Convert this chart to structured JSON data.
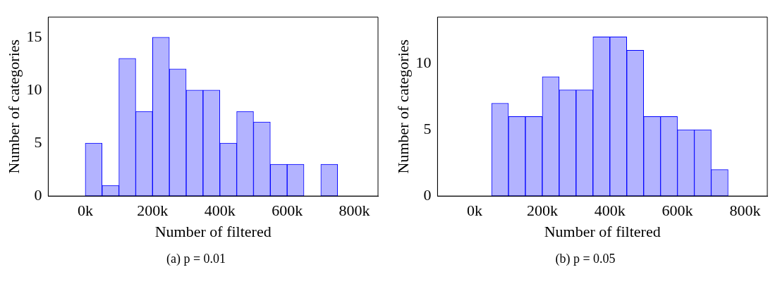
{
  "chart_data": [
    {
      "type": "histogram",
      "xlabel": "Number of filtered",
      "ylabel": "Number of categories",
      "annotations": [
        "(a) p = 0.01"
      ],
      "bins": [
        0,
        50000,
        100000,
        150000,
        200000,
        250000,
        300000,
        350000,
        400000,
        450000,
        500000,
        550000,
        600000,
        650000,
        700000,
        750000,
        800000
      ],
      "values": [
        5,
        1,
        13,
        8,
        15,
        12,
        10,
        10,
        5,
        8,
        7,
        3,
        3,
        0,
        3,
        0
      ],
      "color": "#b3b3ff",
      "xlim": [
        -110000,
        870000
      ],
      "xticks": [
        {
          "value": 0,
          "label": "0k"
        },
        {
          "value": 200000,
          "label": "200k"
        },
        {
          "value": 400000,
          "label": "400k"
        },
        {
          "value": 600000,
          "label": "600k"
        },
        {
          "value": 800000,
          "label": "800k"
        }
      ],
      "ylim": [
        0,
        16.9
      ],
      "yticks": [
        0,
        5,
        10,
        15
      ],
      "grid": false,
      "legend": false
    },
    {
      "type": "histogram",
      "xlabel": "Number of filtered",
      "ylabel": "Number of categories",
      "annotations": [
        "(b) p = 0.05"
      ],
      "bins": [
        0,
        50000,
        100000,
        150000,
        200000,
        250000,
        300000,
        350000,
        400000,
        450000,
        500000,
        550000,
        600000,
        650000,
        700000,
        750000,
        800000
      ],
      "values": [
        0,
        7,
        6,
        6,
        9,
        8,
        8,
        12,
        12,
        11,
        6,
        6,
        5,
        5,
        2,
        0
      ],
      "color": "#b3b3ff",
      "xlim": [
        -110000,
        866000
      ],
      "xticks": [
        {
          "value": 0,
          "label": "0k"
        },
        {
          "value": 200000,
          "label": "200k"
        },
        {
          "value": 400000,
          "label": "400k"
        },
        {
          "value": 600000,
          "label": "600k"
        },
        {
          "value": 800000,
          "label": "800k"
        }
      ],
      "ylim": [
        0,
        13.5
      ],
      "yticks": [
        0,
        5,
        10
      ],
      "grid": false,
      "legend": false
    }
  ]
}
